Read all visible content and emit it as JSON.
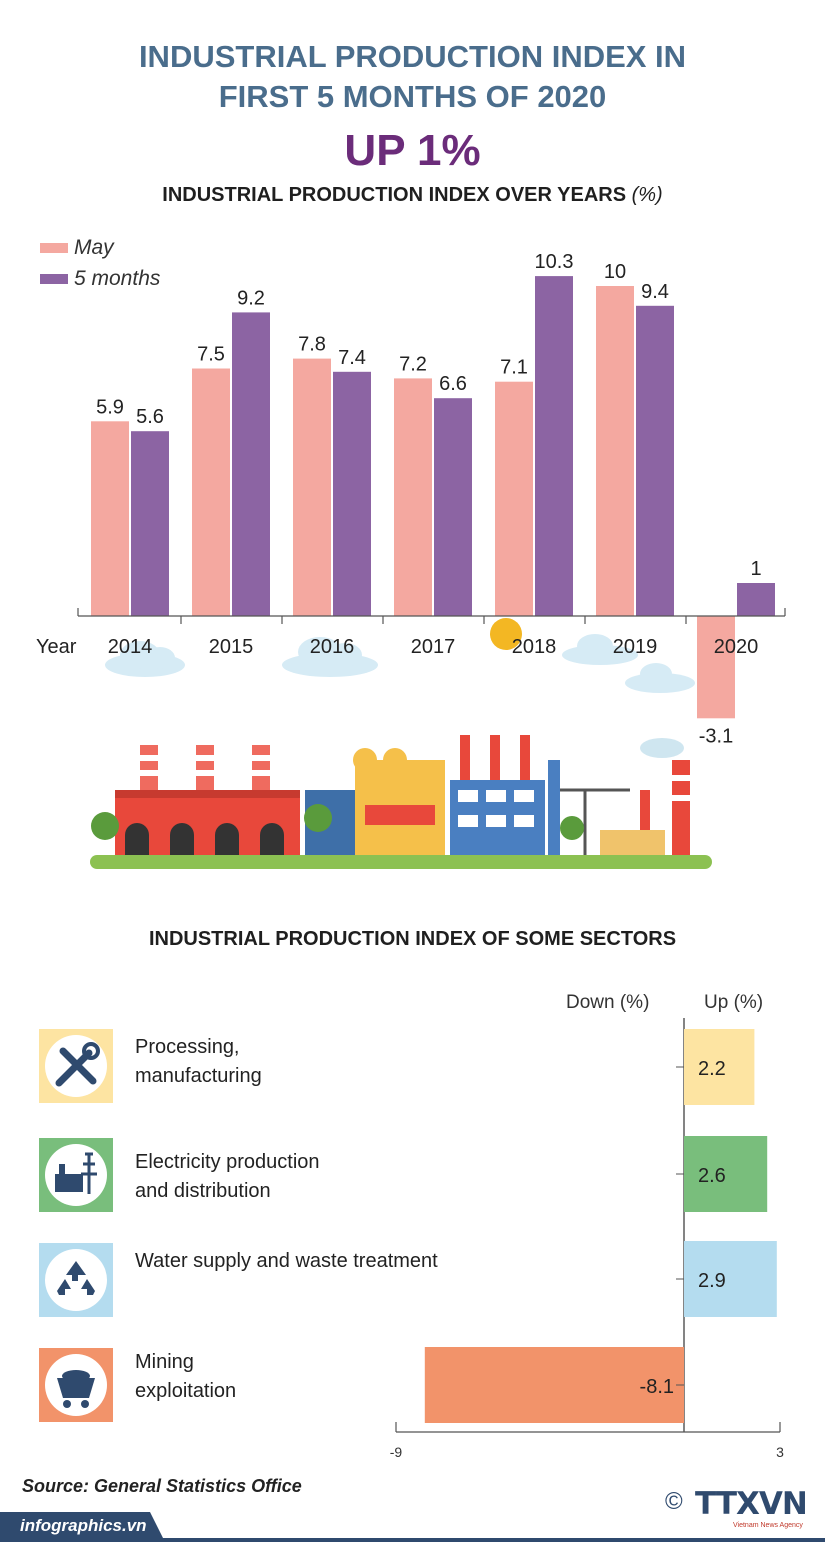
{
  "header": {
    "title_line1": "INDUSTRIAL PRODUCTION INDEX IN",
    "title_line2": "FIRST 5 MONTHS OF 2020",
    "headline": "UP 1%",
    "chart1_title": "INDUSTRIAL PRODUCTION INDEX OVER YEARS",
    "chart1_unit": "(%)"
  },
  "chart_data": [
    {
      "type": "bar",
      "title": "INDUSTRIAL PRODUCTION INDEX OVER YEARS (%)",
      "xlabel": "Year",
      "categories": [
        "2014",
        "2015",
        "2016",
        "2017",
        "2018",
        "2019",
        "2020"
      ],
      "series": [
        {
          "name": "May",
          "color": "#f4a8a0",
          "values": [
            5.9,
            7.5,
            7.8,
            7.2,
            7.1,
            10,
            -3.1
          ]
        },
        {
          "name": "5 months",
          "color": "#8c64a3",
          "values": [
            5.6,
            9.2,
            7.4,
            6.6,
            10.3,
            9.4,
            1
          ]
        }
      ],
      "value_labels": [
        [
          "5.9",
          "7.5",
          "7.8",
          "7.2",
          "7.1",
          "10",
          "-3.1"
        ],
        [
          "5.6",
          "9.2",
          "7.4",
          "6.6",
          "10.3",
          "9.4",
          "1"
        ]
      ],
      "legend_position": "top-left"
    },
    {
      "type": "bar",
      "orientation": "horizontal",
      "title": "INDUSTRIAL PRODUCTION INDEX  OF SOME SECTORS",
      "down_label": "Down (%)",
      "up_label": "Up (%)",
      "xlim": [
        -9,
        3
      ],
      "ticks": [
        "-9",
        "3"
      ],
      "sectors": [
        {
          "label_lines": [
            "Processing,",
            "manufacturing"
          ],
          "value": 2.2,
          "value_label": "2.2",
          "color": "#fde4a2",
          "icon": "tools-icon"
        },
        {
          "label_lines": [
            "Electricity production",
            "and distribution"
          ],
          "value": 2.6,
          "value_label": "2.6",
          "color": "#79be7c",
          "icon": "power-plant-icon"
        },
        {
          "label_lines": [
            "Water supply and waste treatment"
          ],
          "value": 2.9,
          "value_label": "2.9",
          "color": "#b4dcef",
          "icon": "recycle-icon"
        },
        {
          "label_lines": [
            "Mining",
            "exploitation"
          ],
          "value": -8.1,
          "value_label": "-8.1",
          "color": "#f2936a",
          "icon": "mine-cart-icon"
        }
      ]
    }
  ],
  "footer": {
    "source": "Source:  General Statistics Office",
    "site": "infographics.vn",
    "logo_text": "TTXVN",
    "logo_sub": "Vietnam News Agency",
    "copyright": "©"
  }
}
